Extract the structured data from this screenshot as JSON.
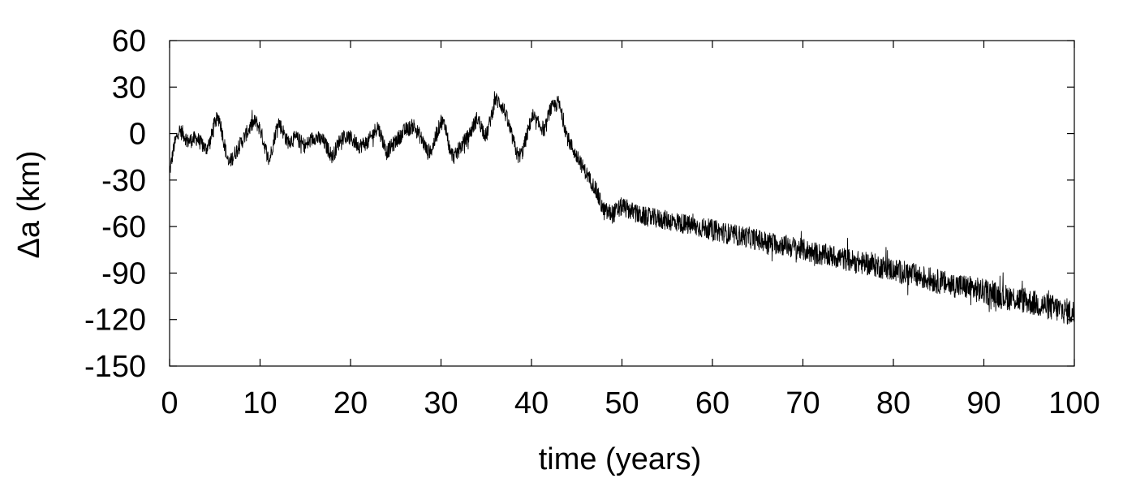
{
  "chart_data": {
    "type": "line",
    "title": "",
    "xlabel": "time (years)",
    "ylabel": "Δa (km)",
    "xlim": [
      0,
      100
    ],
    "ylim": [
      -150,
      60
    ],
    "grid": false,
    "legend": "none",
    "line_color": "#000000",
    "x_ticks": [
      {
        "value": 0,
        "label": "0"
      },
      {
        "value": 10,
        "label": "10"
      },
      {
        "value": 20,
        "label": "20"
      },
      {
        "value": 30,
        "label": "30"
      },
      {
        "value": 40,
        "label": "40"
      },
      {
        "value": 50,
        "label": "50"
      },
      {
        "value": 60,
        "label": "60"
      },
      {
        "value": 70,
        "label": "70"
      },
      {
        "value": 80,
        "label": "80"
      },
      {
        "value": 90,
        "label": "90"
      },
      {
        "value": 100,
        "label": "100"
      }
    ],
    "y_ticks": [
      {
        "value": 60,
        "label": "60"
      },
      {
        "value": 30,
        "label": "30"
      },
      {
        "value": 0,
        "label": "0"
      },
      {
        "value": -30,
        "label": "-30"
      },
      {
        "value": -60,
        "label": "-60"
      },
      {
        "value": -90,
        "label": "-90"
      },
      {
        "value": -120,
        "label": "-120"
      },
      {
        "value": -150,
        "label": "-150"
      }
    ],
    "series": [
      {
        "x": [
          0,
          0.5,
          1,
          1.5,
          2,
          3,
          4,
          4.5,
          5,
          5.5,
          6,
          6.5,
          7,
          8,
          9,
          9.5,
          10,
          11,
          11.5,
          12,
          12.5,
          13,
          14,
          15,
          16,
          17,
          18,
          19,
          20,
          21,
          22,
          23,
          24,
          25,
          26,
          27,
          28,
          28.5,
          29,
          30,
          30.5,
          31,
          31.5,
          32,
          33,
          34,
          35,
          36,
          36.5,
          37,
          38,
          38.5,
          39,
          40,
          41,
          41.5,
          42,
          43,
          44,
          45,
          46,
          47,
          48,
          49,
          50,
          52,
          54,
          56,
          58,
          60,
          62,
          64,
          66,
          68,
          70,
          72,
          74,
          76,
          78,
          80,
          82,
          84,
          86,
          88,
          90,
          92,
          94,
          96,
          98,
          100
        ],
        "y": [
          -25,
          -8,
          2,
          0,
          -5,
          -3,
          -10,
          -5,
          8,
          10,
          -5,
          -20,
          -15,
          -5,
          5,
          8,
          3,
          -18,
          -5,
          8,
          2,
          -5,
          -3,
          -8,
          -2,
          -5,
          -15,
          -2,
          -3,
          -8,
          -5,
          5,
          -12,
          -5,
          2,
          5,
          -5,
          -12,
          -10,
          8,
          5,
          -12,
          -15,
          -10,
          -2,
          10,
          -2,
          22,
          20,
          15,
          -5,
          -15,
          -12,
          10,
          5,
          2,
          15,
          20,
          -3,
          -15,
          -25,
          -35,
          -50,
          -52,
          -47,
          -53,
          -55,
          -57,
          -60,
          -62,
          -65,
          -67,
          -70,
          -72,
          -75,
          -78,
          -80,
          -83,
          -85,
          -88,
          -91,
          -94,
          -97,
          -99,
          -102,
          -105,
          -107,
          -110,
          -113,
          -116
        ]
      }
    ]
  }
}
